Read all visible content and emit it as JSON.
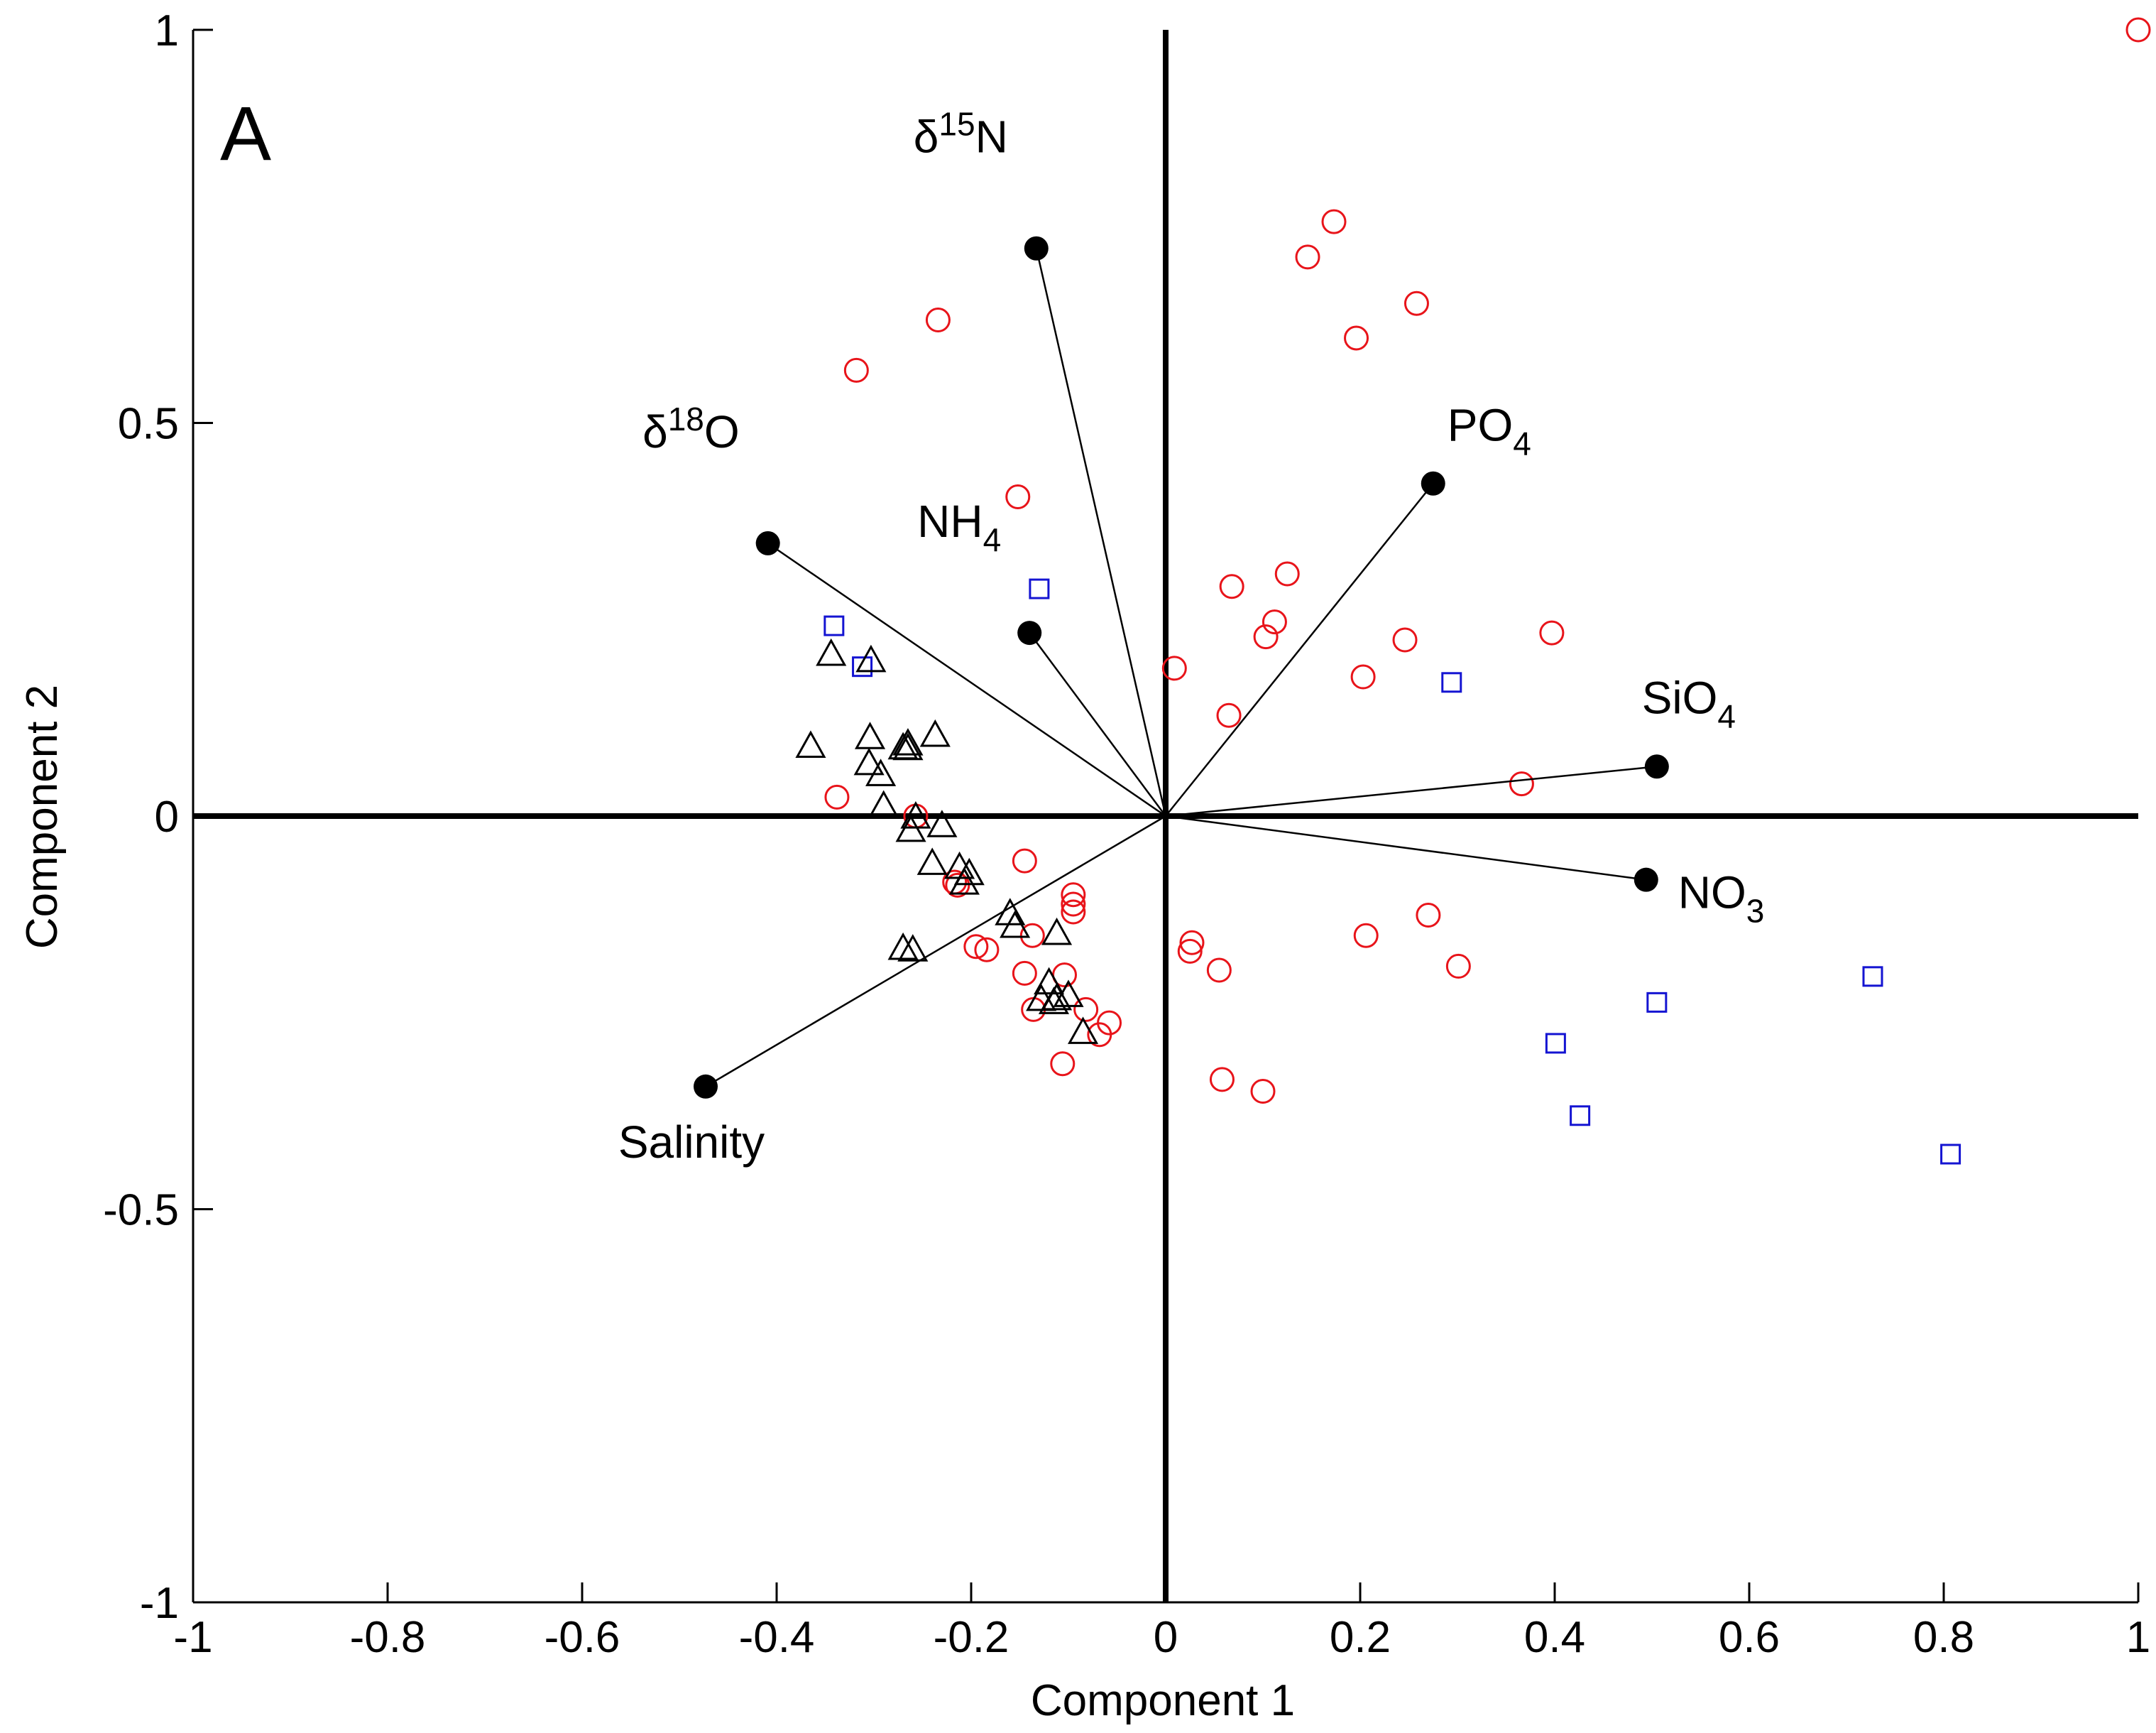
{
  "chart_data": {
    "type": "scatter",
    "title": "",
    "panel_label": "A",
    "xlabel": "Component 1",
    "ylabel": "Component 2",
    "xlim": [
      -1,
      1
    ],
    "ylim": [
      -1,
      1
    ],
    "grid": false,
    "x_ticks": [
      -1,
      -0.8,
      -0.6,
      -0.4,
      -0.2,
      0,
      0.2,
      0.4,
      0.6,
      0.8,
      1
    ],
    "x_tick_labels": [
      "-1",
      "-0.8",
      "-0.6",
      "-0.4",
      "-0.2",
      "0",
      "0.2",
      "0.4",
      "0.6",
      "0.8",
      "1"
    ],
    "y_ticks": [
      -1,
      -0.5,
      0,
      0.5,
      1
    ],
    "y_tick_labels": [
      "-1",
      "-0.5",
      "0",
      "0.5",
      "1"
    ],
    "colors": {
      "circles": "#e8141a",
      "squares": "#1414d2",
      "triangles": "#000000",
      "loadings": "#000000"
    },
    "loadings": [
      {
        "base": "δ",
        "sup": "15",
        "rest": "N",
        "sub": "",
        "x": -0.133,
        "y": 0.722,
        "label_anchor": "above-left"
      },
      {
        "base": "δ",
        "sup": "18",
        "rest": "O",
        "sub": "",
        "x": -0.409,
        "y": 0.347,
        "label_anchor": "above-left"
      },
      {
        "base": "NH",
        "sup": "",
        "rest": "",
        "sub": "4",
        "x": -0.14,
        "y": 0.233,
        "label_anchor": "above-left"
      },
      {
        "base": "PO",
        "sup": "",
        "rest": "",
        "sub": "4",
        "x": 0.275,
        "y": 0.423,
        "label_anchor": "above-right"
      },
      {
        "base": "SiO",
        "sup": "",
        "rest": "",
        "sub": "4",
        "x": 0.505,
        "y": 0.063,
        "label_anchor": "above"
      },
      {
        "base": "NO",
        "sup": "",
        "rest": "",
        "sub": "3",
        "x": 0.494,
        "y": -0.081,
        "label_anchor": "right"
      },
      {
        "base": "Salinity",
        "sup": "",
        "rest": "",
        "sub": "",
        "x": -0.473,
        "y": -0.344,
        "label_anchor": "below"
      }
    ],
    "series": [
      {
        "name": "circles",
        "marker": "circle",
        "points": [
          [
            1.0,
            1.0
          ],
          [
            -0.234,
            0.631
          ],
          [
            -0.318,
            0.567
          ],
          [
            0.173,
            0.756
          ],
          [
            0.146,
            0.711
          ],
          [
            0.258,
            0.652
          ],
          [
            0.196,
            0.608
          ],
          [
            -0.152,
            0.406
          ],
          [
            0.125,
            0.308
          ],
          [
            0.068,
            0.292
          ],
          [
            0.112,
            0.247
          ],
          [
            0.103,
            0.228
          ],
          [
            0.246,
            0.224
          ],
          [
            0.397,
            0.233
          ],
          [
            0.009,
            0.188
          ],
          [
            0.203,
            0.177
          ],
          [
            0.065,
            0.128
          ],
          [
            0.366,
            0.041
          ],
          [
            -0.338,
            0.024
          ],
          [
            -0.257,
            0.0
          ],
          [
            -0.145,
            -0.057
          ],
          [
            -0.217,
            -0.084
          ],
          [
            -0.214,
            -0.088
          ],
          [
            -0.095,
            -0.1
          ],
          [
            -0.095,
            -0.112
          ],
          [
            -0.095,
            -0.122
          ],
          [
            -0.195,
            -0.166
          ],
          [
            -0.184,
            -0.17
          ],
          [
            -0.137,
            -0.152
          ],
          [
            0.027,
            -0.161
          ],
          [
            0.025,
            -0.172
          ],
          [
            0.206,
            -0.152
          ],
          [
            0.27,
            -0.126
          ],
          [
            0.301,
            -0.191
          ],
          [
            0.055,
            -0.196
          ],
          [
            -0.145,
            -0.2
          ],
          [
            -0.104,
            -0.202
          ],
          [
            -0.082,
            -0.246
          ],
          [
            -0.136,
            -0.246
          ],
          [
            -0.058,
            -0.263
          ],
          [
            -0.068,
            -0.278
          ],
          [
            -0.106,
            -0.315
          ],
          [
            0.058,
            -0.335
          ],
          [
            0.1,
            -0.35
          ]
        ]
      },
      {
        "name": "squares",
        "marker": "square",
        "points": [
          [
            -0.341,
            0.242
          ],
          [
            -0.312,
            0.19
          ],
          [
            -0.13,
            0.289
          ],
          [
            0.294,
            0.17
          ],
          [
            0.505,
            -0.237
          ],
          [
            0.401,
            -0.289
          ],
          [
            0.426,
            -0.381
          ],
          [
            0.727,
            -0.204
          ],
          [
            0.807,
            -0.43
          ]
        ]
      },
      {
        "name": "triangles",
        "marker": "triangle",
        "points": [
          [
            -0.344,
            0.206
          ],
          [
            -0.303,
            0.198
          ],
          [
            -0.365,
            0.089
          ],
          [
            -0.304,
            0.1
          ],
          [
            -0.265,
            0.092
          ],
          [
            -0.237,
            0.103
          ],
          [
            -0.305,
            0.067
          ],
          [
            -0.293,
            0.053
          ],
          [
            -0.265,
            0.086
          ],
          [
            -0.27,
            0.087
          ],
          [
            -0.29,
            0.013
          ],
          [
            -0.262,
            -0.018
          ],
          [
            -0.257,
            -0.001
          ],
          [
            -0.23,
            -0.012
          ],
          [
            -0.212,
            -0.065
          ],
          [
            -0.202,
            -0.073
          ],
          [
            -0.24,
            -0.06
          ],
          [
            -0.207,
            -0.085
          ],
          [
            -0.16,
            -0.124
          ],
          [
            -0.155,
            -0.14
          ],
          [
            -0.112,
            -0.149
          ],
          [
            -0.27,
            -0.168
          ],
          [
            -0.26,
            -0.17
          ],
          [
            -0.12,
            -0.212
          ],
          [
            -0.112,
            -0.232
          ],
          [
            -0.1,
            -0.228
          ],
          [
            -0.128,
            -0.233
          ],
          [
            -0.115,
            -0.237
          ],
          [
            -0.085,
            -0.275
          ]
        ]
      }
    ]
  }
}
